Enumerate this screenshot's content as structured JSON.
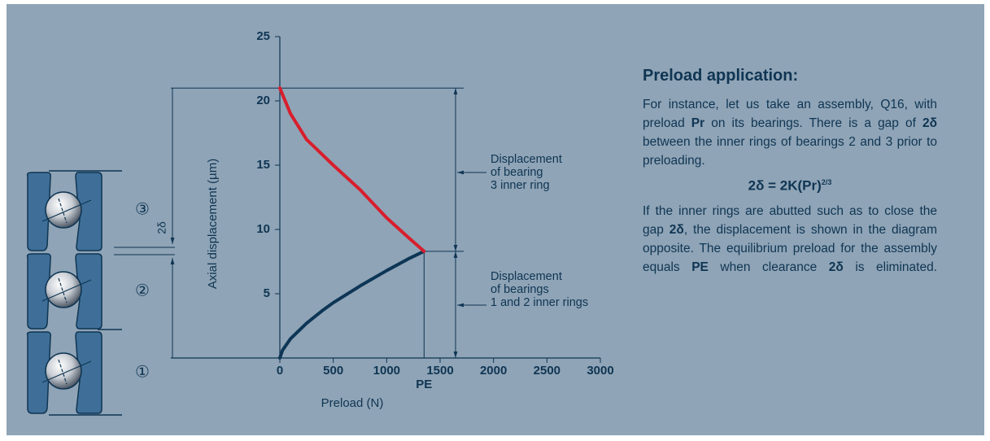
{
  "chart_data": {
    "type": "line",
    "xlabel": "Preload (N)",
    "ylabel": "Axial displacement (µm)",
    "x": [
      0,
      25,
      100,
      250,
      400,
      500,
      750,
      1000,
      1200,
      1350
    ],
    "series": [
      {
        "color": "#0d3656",
        "values": [
          0,
          0.6,
          1.5,
          2.7,
          3.7,
          4.3,
          5.6,
          6.8,
          7.7,
          8.3
        ]
      },
      {
        "color": "#d81e2c",
        "values": [
          21,
          20.5,
          19.0,
          17.0,
          15.8,
          15.0,
          13.1,
          10.9,
          9.4,
          8.3
        ]
      }
    ],
    "xlim": [
      0,
      3000
    ],
    "xticks": [
      0,
      500,
      1000,
      1500,
      2000,
      2500,
      3000
    ],
    "ylim": [
      0,
      25
    ],
    "yticks": [
      5,
      10,
      15,
      20,
      25
    ],
    "annotations": [
      {
        "text": "PE",
        "x": 1350
      },
      {
        "text": "2δ"
      },
      {
        "lines": [
          "Displacement",
          "of bearing",
          "3 inner ring"
        ]
      },
      {
        "lines": [
          "Displacement",
          "of bearings",
          "1 and 2 inner rings"
        ]
      }
    ],
    "bearing_labels": [
      "③",
      "②",
      "①"
    ]
  },
  "text_panel": {
    "title": "Preload application:",
    "para1": [
      "For instance, let us take an assembly, Q16, with preload ",
      "Pr",
      " on its bearings. There is a gap of ",
      "2δ",
      " between the inner rings of bearings 2 and 3 prior to preloading."
    ],
    "formula": {
      "base": "2δ = 2K(Pr)",
      "sup": "2/3"
    },
    "para2": [
      "If the inner rings are abutted such as to close the gap ",
      "2δ",
      ", the displacement is shown in the diagram opposite. The equilibrium preload for the assembly equals ",
      "PE",
      " when clearance ",
      "2δ",
      " is eliminated."
    ]
  }
}
